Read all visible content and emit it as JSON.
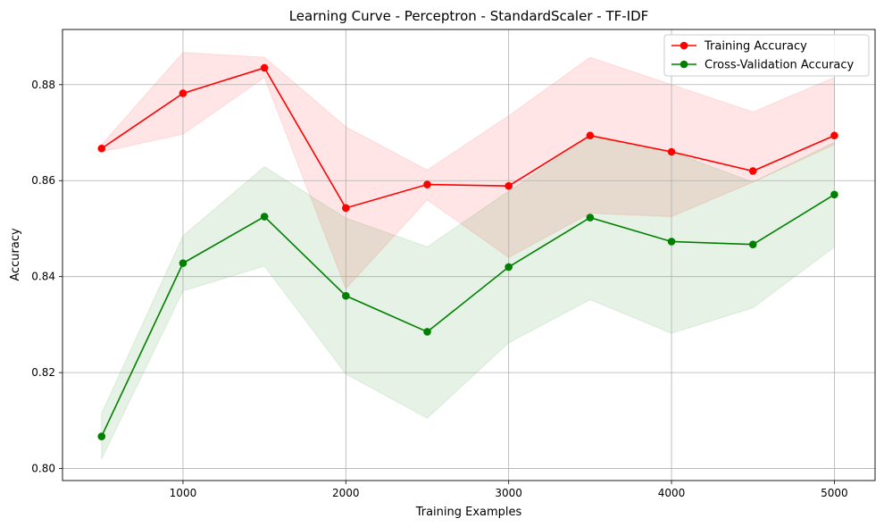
{
  "chart_data": {
    "type": "line",
    "title": "Learning Curve - Perceptron - StandardScaler - TF-IDF",
    "xlabel": "Training Examples",
    "ylabel": "Accuracy",
    "xlim": [
      260,
      5250
    ],
    "ylim": [
      0.7975,
      0.8915
    ],
    "xticks": [
      1000,
      2000,
      3000,
      4000,
      5000
    ],
    "yticks": [
      0.8,
      0.82,
      0.84,
      0.86,
      0.88
    ],
    "xtick_labels": [
      "1000",
      "2000",
      "3000",
      "4000",
      "5000"
    ],
    "ytick_labels": [
      "0.80",
      "0.82",
      "0.84",
      "0.86",
      "0.88"
    ],
    "grid": true,
    "legend_position": "top-right",
    "x": [
      500,
      1000,
      1500,
      2000,
      2500,
      3000,
      3500,
      4000,
      4500,
      5000
    ],
    "series": [
      {
        "name": "Training Accuracy",
        "color": "#ff0000",
        "fill_color": "#ff0000",
        "values": [
          0.8667,
          0.8782,
          0.8835,
          0.8543,
          0.8592,
          0.8589,
          0.8694,
          0.866,
          0.862,
          0.8694
        ],
        "lower": [
          0.866,
          0.8697,
          0.8815,
          0.8375,
          0.856,
          0.844,
          0.8532,
          0.8525,
          0.8597,
          0.8675
        ],
        "upper": [
          0.8675,
          0.8867,
          0.8857,
          0.8712,
          0.8622,
          0.8735,
          0.8857,
          0.88,
          0.8743,
          0.8815
        ]
      },
      {
        "name": "Cross-Validation Accuracy",
        "color": "#008000",
        "fill_color": "#008000",
        "values": [
          0.8067,
          0.8428,
          0.8525,
          0.836,
          0.8285,
          0.842,
          0.8523,
          0.8473,
          0.8467,
          0.8571
        ],
        "lower": [
          0.802,
          0.837,
          0.8422,
          0.8197,
          0.8105,
          0.8262,
          0.8352,
          0.8282,
          0.8335,
          0.8462
        ],
        "upper": [
          0.8115,
          0.8485,
          0.8629,
          0.8522,
          0.8462,
          0.8578,
          0.8692,
          0.866,
          0.8597,
          0.868
        ]
      }
    ]
  }
}
